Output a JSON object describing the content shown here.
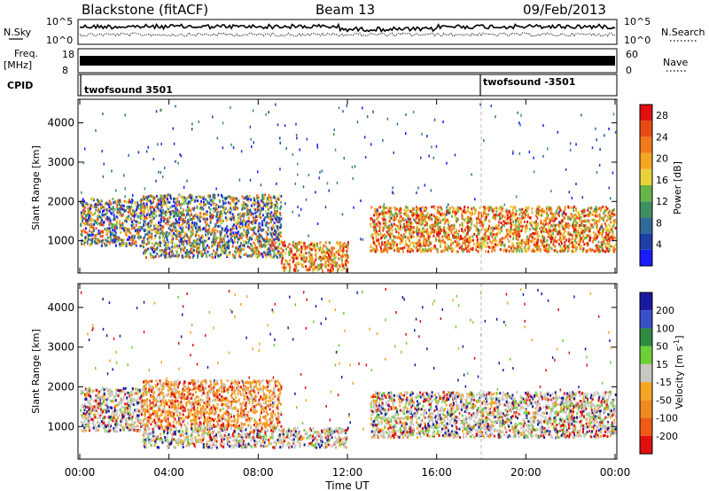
{
  "header": {
    "station": "Blackstone (fitACF)",
    "beam": "Beam 13",
    "date": "09/Feb/2013"
  },
  "panels": {
    "noise": {
      "left_label": "N.Sky",
      "right_label": "N.Search",
      "left_ticks": [
        "10^5",
        "10^0"
      ],
      "right_ticks": [
        "10^5",
        "10^0"
      ]
    },
    "freq": {
      "left_label_top": "Freq.",
      "left_label_bottom": "[MHz]",
      "right_label": "Nave",
      "left_ticks": [
        "18",
        "8"
      ],
      "right_ticks": [
        "60",
        "0"
      ]
    },
    "cpid": {
      "label": "CPID",
      "segments": [
        "twofsound 3501",
        "twofsound -3501"
      ],
      "change_time": "18:00"
    }
  },
  "chart_data": [
    {
      "type": "heatmap",
      "title": "",
      "quantity": "Power",
      "ylabel": "Slant Range [km]",
      "xlabel": "",
      "x_ticks": [
        "00:00",
        "04:00",
        "08:00",
        "12:00",
        "16:00",
        "20:00",
        "00:00"
      ],
      "y_ticks": [
        "1000",
        "2000",
        "3000",
        "4000"
      ],
      "xlim": [
        "00:00",
        "24:00"
      ],
      "ylim": [
        180,
        4600
      ],
      "colorbar": {
        "label": "Power [dB]",
        "ticks": [
          "4",
          "8",
          "12",
          "16",
          "20",
          "24",
          "28"
        ],
        "range": [
          0,
          30
        ],
        "colors": [
          "#1a1aff",
          "#1f3fa8",
          "#2f6b9a",
          "#3f9060",
          "#66b34a",
          "#e8d33a",
          "#f5a623",
          "#f07a1c",
          "#e84a14",
          "#e01010"
        ]
      },
      "bands": [
        {
          "t_start": 0.0,
          "t_end": 2.8,
          "range_lo": 900,
          "range_hi": 2100,
          "level": "mixed"
        },
        {
          "t_start": 2.8,
          "t_end": 9.0,
          "range_lo": 600,
          "range_hi": 2200,
          "level": "mixed"
        },
        {
          "t_start": 9.0,
          "t_end": 12.0,
          "range_lo": 250,
          "range_hi": 1000,
          "level": "strong"
        },
        {
          "t_start": 13.0,
          "t_end": 24.0,
          "range_lo": 750,
          "range_hi": 1900,
          "level": "strong"
        }
      ]
    },
    {
      "type": "heatmap",
      "title": "",
      "quantity": "Velocity",
      "ylabel": "Slant Range [km]",
      "xlabel": "Time UT",
      "x_ticks": [
        "00:00",
        "04:00",
        "08:00",
        "12:00",
        "16:00",
        "20:00",
        "00:00"
      ],
      "y_ticks": [
        "1000",
        "2000",
        "3000",
        "4000"
      ],
      "xlim": [
        "00:00",
        "24:00"
      ],
      "ylim": [
        180,
        4600
      ],
      "colorbar": {
        "label": "Velocity [m s-1]",
        "label_main": "Velocity ",
        "label_unit": "[m s",
        "label_exp": "-1",
        "label_close": "]",
        "ticks": [
          "200",
          "100",
          "50",
          "15",
          "-15",
          "-50",
          "-100",
          "-200"
        ],
        "range": [
          -250,
          250
        ],
        "colors": [
          "#1a1aa0",
          "#3a4ec8",
          "#2e8a40",
          "#6ccf3a",
          "#c8c8c0",
          "#f5a623",
          "#f08a1c",
          "#f05a14",
          "#e01010"
        ]
      },
      "bands": [
        {
          "t_start": 0.0,
          "t_end": 2.8,
          "range_lo": 900,
          "range_hi": 2000,
          "level": "ground"
        },
        {
          "t_start": 2.8,
          "t_end": 9.0,
          "range_lo": 1000,
          "range_hi": 2200,
          "level": "away"
        },
        {
          "t_start": 2.8,
          "t_end": 12.0,
          "range_lo": 500,
          "range_hi": 1000,
          "level": "ground"
        },
        {
          "t_start": 13.0,
          "t_end": 24.0,
          "range_lo": 750,
          "range_hi": 1900,
          "level": "ground"
        }
      ]
    }
  ]
}
